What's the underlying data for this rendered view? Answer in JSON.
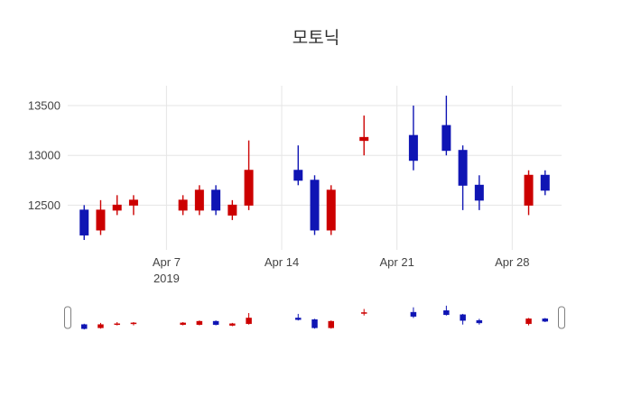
{
  "chart_data": {
    "type": "candlestick",
    "title": "모토닉",
    "x": [
      "2019-04-02",
      "2019-04-03",
      "2019-04-04",
      "2019-04-05",
      "2019-04-08",
      "2019-04-09",
      "2019-04-10",
      "2019-04-11",
      "2019-04-12",
      "2019-04-15",
      "2019-04-16",
      "2019-04-17",
      "2019-04-19",
      "2019-04-22",
      "2019-04-24",
      "2019-04-25",
      "2019-04-26",
      "2019-04-29",
      "2019-04-30"
    ],
    "open": [
      12450,
      12250,
      12450,
      12500,
      12450,
      12450,
      12650,
      12400,
      12500,
      12850,
      12750,
      12250,
      13150,
      13200,
      13300,
      13050,
      12700,
      12500,
      12800
    ],
    "high": [
      12500,
      12550,
      12600,
      12600,
      12600,
      12700,
      12700,
      12550,
      13150,
      13100,
      12800,
      12700,
      13400,
      13500,
      13600,
      13100,
      12800,
      12850,
      12850
    ],
    "low": [
      12150,
      12200,
      12400,
      12400,
      12400,
      12400,
      12400,
      12350,
      12450,
      12700,
      12200,
      12200,
      13000,
      12850,
      13000,
      12450,
      12450,
      12400,
      12600
    ],
    "close": [
      12200,
      12450,
      12500,
      12550,
      12550,
      12650,
      12450,
      12500,
      12850,
      12750,
      12250,
      12650,
      13180,
      12950,
      13050,
      12700,
      12550,
      12800,
      12650
    ],
    "increasing_color": "#cc0000",
    "decreasing_color": "#0f15b4",
    "grid_color": "#e5e5e5",
    "tick_color": "#444444",
    "title_color": "#303030",
    "yticks": [
      12500,
      13000,
      13500
    ],
    "ylim": [
      12050,
      13700
    ],
    "xlim": [
      "2019-04-01",
      "2019-05-01"
    ],
    "xticks": [
      {
        "date": "2019-04-07",
        "label": "Apr 7",
        "sublabel": "2019"
      },
      {
        "date": "2019-04-14",
        "label": "Apr 14",
        "sublabel": ""
      },
      {
        "date": "2019-04-21",
        "label": "Apr 21",
        "sublabel": ""
      },
      {
        "date": "2019-04-28",
        "label": "Apr 28",
        "sublabel": ""
      }
    ],
    "rangeslider": true,
    "legend": "none",
    "grid": true
  }
}
